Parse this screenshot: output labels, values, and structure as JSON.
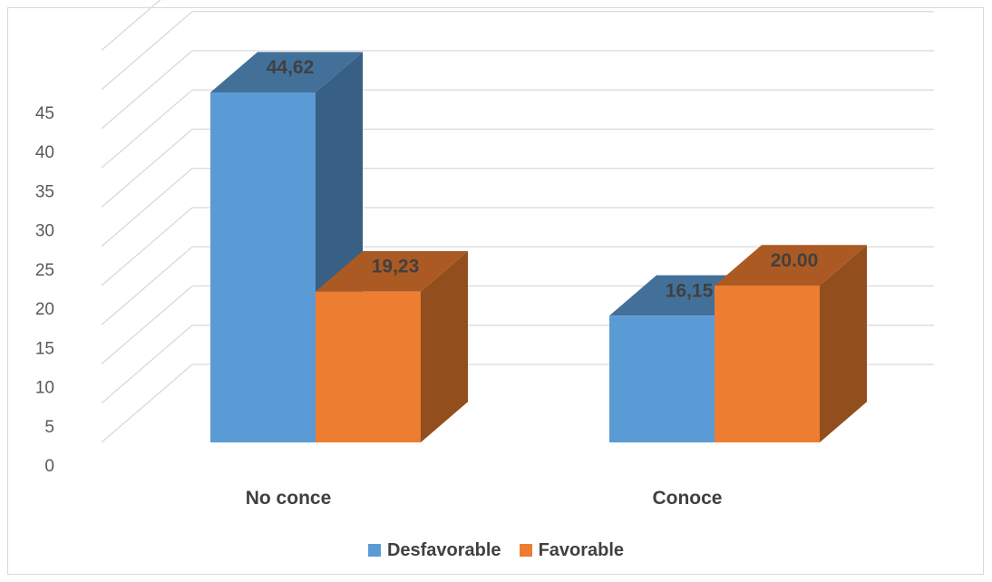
{
  "chart_data": {
    "type": "bar",
    "categories": [
      "No conce",
      "Conoce"
    ],
    "series": [
      {
        "name": "Desfavorable",
        "values": [
          44.62,
          16.15
        ],
        "labels": [
          "44,62",
          "16,15"
        ]
      },
      {
        "name": "Favorable",
        "values": [
          19.23,
          20.0
        ],
        "labels": [
          "19,23",
          "20.00"
        ]
      }
    ],
    "ylim": [
      0,
      45
    ],
    "yticks": [
      "0",
      "5",
      "10",
      "15",
      "20",
      "25",
      "30",
      "35",
      "40",
      "45"
    ],
    "grid": true,
    "legend_position": "bottom",
    "three_d": true
  },
  "colors": {
    "desfavorable": "#5b9bd5",
    "favorable": "#ed7d31",
    "grid": "#d9d9d9",
    "text": "#404040"
  }
}
